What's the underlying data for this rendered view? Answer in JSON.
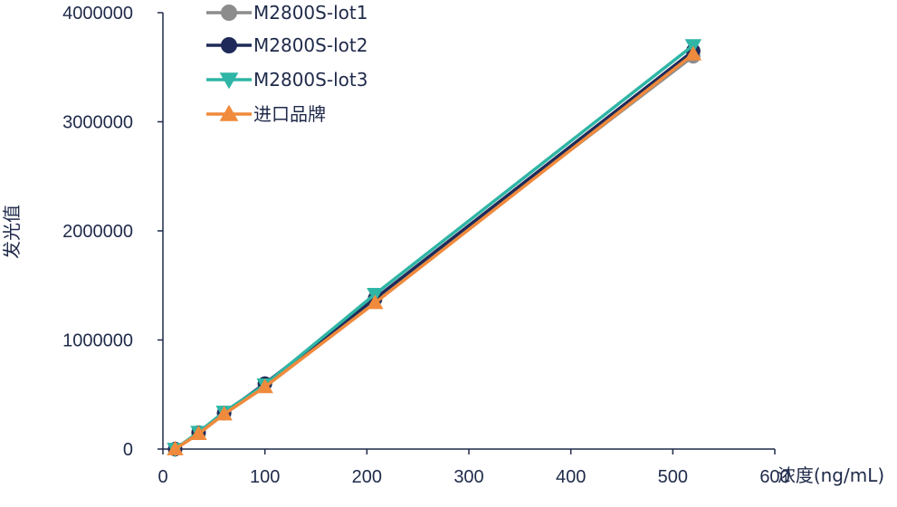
{
  "chart_data": {
    "type": "line",
    "title": "",
    "xlabel": "浓度(ng/mL)",
    "ylabel": "发光值",
    "xlim": [
      0,
      600
    ],
    "ylim": [
      0,
      4000000
    ],
    "xticks": [
      "0",
      "100",
      "200",
      "300",
      "400",
      "500",
      "600"
    ],
    "yticks": [
      "0",
      "1000000",
      "2000000",
      "3000000",
      "4000000"
    ],
    "legend_position": "top-left",
    "grid": false,
    "series": [
      {
        "name": "M2800S-lot1",
        "color": "#8c8c8c",
        "marker": "circle",
        "points": [
          [
            12,
            0
          ],
          [
            35,
            150000
          ],
          [
            60,
            330000
          ],
          [
            100,
            600000
          ],
          [
            208,
            1370000
          ],
          [
            520,
            3600000
          ]
        ]
      },
      {
        "name": "M2800S-lot2",
        "color": "#1f2a5a",
        "marker": "circle",
        "points": [
          [
            12,
            0
          ],
          [
            35,
            150000
          ],
          [
            60,
            330000
          ],
          [
            100,
            600000
          ],
          [
            208,
            1380000
          ],
          [
            520,
            3650000
          ]
        ]
      },
      {
        "name": "M2800S-lot3",
        "color": "#2fb5a5",
        "marker": "triangle-down",
        "points": [
          [
            12,
            0
          ],
          [
            35,
            155000
          ],
          [
            60,
            340000
          ],
          [
            100,
            590000
          ],
          [
            208,
            1420000
          ],
          [
            520,
            3700000
          ]
        ]
      },
      {
        "name": "进口品牌",
        "color": "#f08a3c",
        "marker": "triangle-up",
        "points": [
          [
            12,
            0
          ],
          [
            35,
            140000
          ],
          [
            60,
            320000
          ],
          [
            100,
            570000
          ],
          [
            208,
            1340000
          ],
          [
            520,
            3620000
          ]
        ]
      }
    ]
  }
}
